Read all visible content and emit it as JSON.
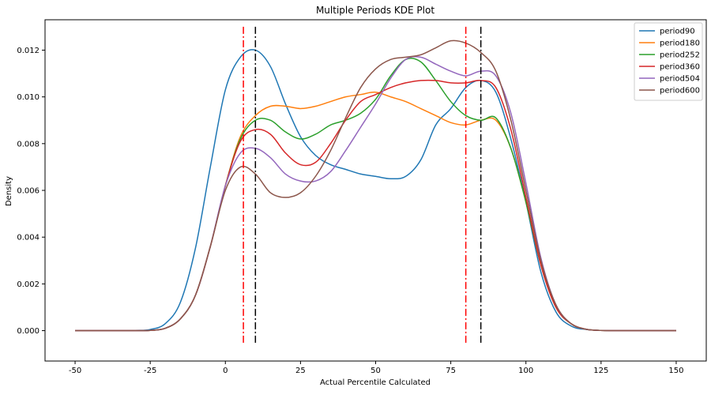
{
  "chart_data": {
    "type": "line",
    "title": "Multiple Periods KDE Plot",
    "xlabel": "Actual Percentile Calculated",
    "ylabel": "Density",
    "xlim": [
      -60,
      160
    ],
    "ylim": [
      -0.0013,
      0.0133
    ],
    "xticks": [
      -50,
      -25,
      0,
      25,
      50,
      75,
      100,
      125,
      150
    ],
    "xtick_labels": [
      "-50",
      "-25",
      "0",
      "25",
      "50",
      "75",
      "100",
      "125",
      "150"
    ],
    "yticks": [
      0.0,
      0.002,
      0.004,
      0.006,
      0.008,
      0.01,
      0.012
    ],
    "ytick_labels": [
      "0.000",
      "0.002",
      "0.004",
      "0.006",
      "0.008",
      "0.010",
      "0.012"
    ],
    "grid": false,
    "legend_position": "top-right",
    "x": [
      -50,
      -40,
      -30,
      -25,
      -20,
      -15,
      -10,
      -5,
      0,
      5,
      10,
      15,
      20,
      25,
      30,
      35,
      40,
      45,
      50,
      55,
      60,
      65,
      70,
      75,
      80,
      85,
      90,
      95,
      100,
      105,
      110,
      115,
      120,
      125,
      130,
      140,
      150
    ],
    "series": [
      {
        "name": "period90",
        "color": "#1f77b4",
        "values": [
          0,
          0,
          1e-05,
          5e-05,
          0.0003,
          0.0012,
          0.0035,
          0.007,
          0.0103,
          0.0117,
          0.012,
          0.0113,
          0.0097,
          0.0083,
          0.0075,
          0.0071,
          0.0069,
          0.0067,
          0.0066,
          0.0065,
          0.0066,
          0.0073,
          0.0088,
          0.0095,
          0.0104,
          0.0107,
          0.0102,
          0.0082,
          0.0055,
          0.0025,
          0.0008,
          0.0002,
          5e-05,
          1e-05,
          0,
          0,
          0
        ]
      },
      {
        "name": "period180",
        "color": "#ff7f0e",
        "values": [
          0,
          0,
          0,
          1e-05,
          0.0001,
          0.0005,
          0.0015,
          0.0036,
          0.0062,
          0.0083,
          0.0092,
          0.0096,
          0.0096,
          0.0095,
          0.0096,
          0.0098,
          0.01,
          0.0101,
          0.0102,
          0.01,
          0.0098,
          0.0095,
          0.0092,
          0.0089,
          0.0088,
          0.009,
          0.009,
          0.0078,
          0.0055,
          0.0028,
          0.001,
          0.0003,
          6e-05,
          1e-05,
          0,
          0,
          0
        ]
      },
      {
        "name": "period252",
        "color": "#2ca02c",
        "values": [
          0,
          0,
          0,
          1e-05,
          0.0001,
          0.0005,
          0.0015,
          0.0036,
          0.0062,
          0.0082,
          0.009,
          0.009,
          0.0085,
          0.0082,
          0.0084,
          0.0088,
          0.009,
          0.0093,
          0.0099,
          0.0109,
          0.0116,
          0.0115,
          0.0107,
          0.0098,
          0.0092,
          0.009,
          0.0091,
          0.0078,
          0.0055,
          0.0028,
          0.001,
          0.0003,
          6e-05,
          1e-05,
          0,
          0,
          0
        ]
      },
      {
        "name": "period360",
        "color": "#d62728",
        "values": [
          0,
          0,
          0,
          1e-05,
          0.0001,
          0.0005,
          0.0015,
          0.0036,
          0.0062,
          0.0081,
          0.0086,
          0.0084,
          0.0076,
          0.0071,
          0.0072,
          0.008,
          0.009,
          0.0098,
          0.0101,
          0.0104,
          0.0106,
          0.0107,
          0.0107,
          0.0106,
          0.0106,
          0.0107,
          0.0104,
          0.0086,
          0.0057,
          0.0028,
          0.001,
          0.0003,
          6e-05,
          1e-05,
          0,
          0,
          0
        ]
      },
      {
        "name": "period504",
        "color": "#9467bd",
        "values": [
          0,
          0,
          0,
          1e-05,
          0.0001,
          0.0005,
          0.0015,
          0.0036,
          0.0062,
          0.0076,
          0.0078,
          0.0074,
          0.0067,
          0.0064,
          0.0064,
          0.0068,
          0.0077,
          0.0087,
          0.0097,
          0.0108,
          0.0116,
          0.0117,
          0.0114,
          0.0111,
          0.0109,
          0.0111,
          0.0109,
          0.0093,
          0.0063,
          0.0031,
          0.0011,
          0.0003,
          6e-05,
          1e-05,
          0,
          0,
          0
        ]
      },
      {
        "name": "period600",
        "color": "#8c564b",
        "values": [
          0,
          0,
          0,
          1e-05,
          0.0001,
          0.0005,
          0.0015,
          0.0036,
          0.006,
          0.007,
          0.0067,
          0.0059,
          0.0057,
          0.0059,
          0.0066,
          0.0077,
          0.0091,
          0.0104,
          0.0112,
          0.0116,
          0.0117,
          0.0118,
          0.0121,
          0.0124,
          0.0123,
          0.0119,
          0.0111,
          0.009,
          0.006,
          0.003,
          0.0011,
          0.0003,
          6e-05,
          1e-05,
          0,
          0,
          0
        ]
      }
    ],
    "reference_lines": [
      {
        "x": 6,
        "color": "#ff0000",
        "ymin": -0.0006,
        "ymax": 0.013
      },
      {
        "x": 10,
        "color": "#000000",
        "ymin": -0.0006,
        "ymax": 0.013
      },
      {
        "x": 80,
        "color": "#ff0000",
        "ymin": -0.0006,
        "ymax": 0.013
      },
      {
        "x": 85,
        "color": "#000000",
        "ymin": -0.0006,
        "ymax": 0.013
      }
    ]
  }
}
